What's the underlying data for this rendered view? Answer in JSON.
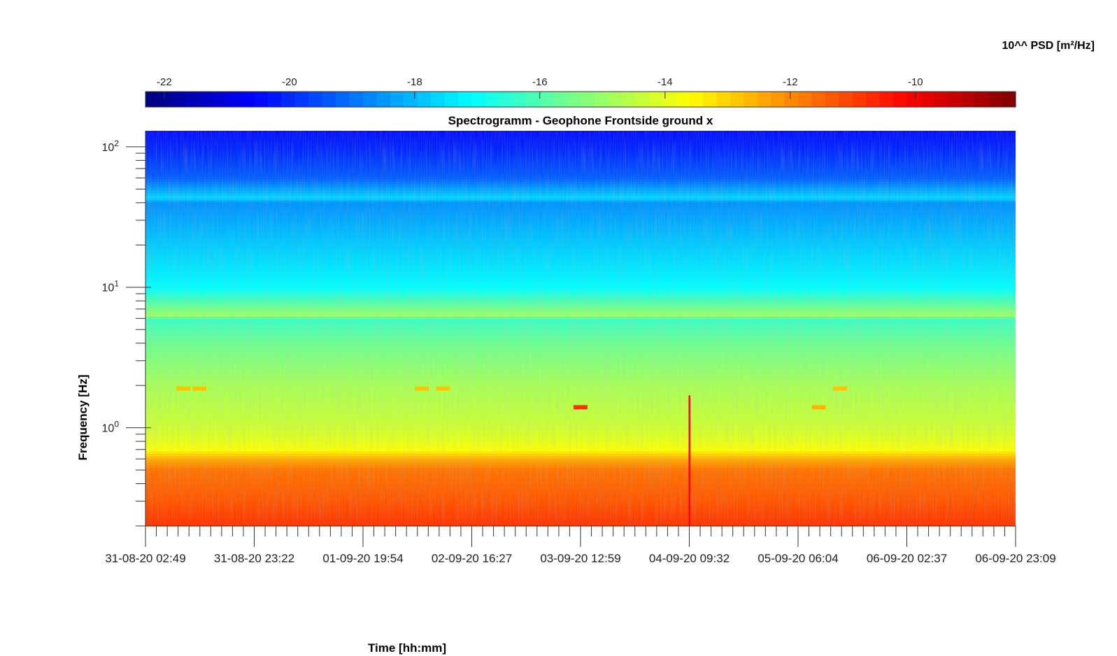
{
  "chart_data": {
    "type": "heatmap",
    "title": "Spectrogramm - Geophone Frontside ground x",
    "xlabel": "Time [hh:mm]",
    "ylabel": "Frequency [Hz]",
    "colorbar_label": "10^^ PSD [m²/Hz]",
    "colormap": "jet",
    "x_tick_labels": [
      "31-08-20 02:49",
      "31-08-20 23:22",
      "01-09-20 19:54",
      "02-09-20 16:27",
      "03-09-20 12:59",
      "04-09-20 09:32",
      "05-09-20 06:04",
      "06-09-20 02:37",
      "06-09-20 23:09"
    ],
    "y_scale": "log",
    "y_tick_labels": [
      {
        "base": "10",
        "exp": "0"
      },
      {
        "base": "10",
        "exp": "1"
      },
      {
        "base": "10",
        "exp": "2"
      }
    ],
    "ylim": [
      0.2,
      130
    ],
    "colorbar_range": [
      -22.3,
      -8.4
    ],
    "colorbar_ticks": [
      "-22",
      "-20",
      "-18",
      "-16",
      "-14",
      "-12",
      "-10"
    ],
    "frequency_profile": [
      {
        "freq_hz": 0.2,
        "log_psd": -10.8
      },
      {
        "freq_hz": 0.3,
        "log_psd": -11.3
      },
      {
        "freq_hz": 0.5,
        "log_psd": -11.7
      },
      {
        "freq_hz": 0.6,
        "log_psd": -12.5
      },
      {
        "freq_hz": 0.7,
        "log_psd": -13.7
      },
      {
        "freq_hz": 1.0,
        "log_psd": -14.3
      },
      {
        "freq_hz": 2.0,
        "log_psd": -14.8
      },
      {
        "freq_hz": 4.0,
        "log_psd": -15.6
      },
      {
        "freq_hz": 6.0,
        "log_psd": -16.3
      },
      {
        "freq_hz": 6.2,
        "log_psd": -14.9
      },
      {
        "freq_hz": 10.0,
        "log_psd": -17.1
      },
      {
        "freq_hz": 20.0,
        "log_psd": -17.8
      },
      {
        "freq_hz": 40.0,
        "log_psd": -18.6
      },
      {
        "freq_hz": 43.0,
        "log_psd": -17.6
      },
      {
        "freq_hz": 60.0,
        "log_psd": -19.3
      },
      {
        "freq_hz": 100.0,
        "log_psd": -20.1
      },
      {
        "freq_hz": 130.0,
        "log_psd": -20.4
      }
    ],
    "notable_features": [
      {
        "time": "~31-08-20 10:00",
        "freq_hz": 1.9,
        "log_psd": -12.8
      },
      {
        "time": "~31-08-20 13:00",
        "freq_hz": 1.9,
        "log_psd": -12.8
      },
      {
        "time": "~02-09-20 07:00",
        "freq_hz": 1.9,
        "log_psd": -12.8
      },
      {
        "time": "~02-09-20 11:00",
        "freq_hz": 1.9,
        "log_psd": -12.8
      },
      {
        "time": "~03-09-20 12:59",
        "freq_hz": 1.4,
        "log_psd": -10.8
      },
      {
        "time": "~04-09-20 09:32",
        "freq_hz": 0.3,
        "log_psd": -10.2
      },
      {
        "time": "~05-09-20 10:00",
        "freq_hz": 1.4,
        "log_psd": -12.6
      },
      {
        "time": "~05-09-20 14:00",
        "freq_hz": 1.9,
        "log_psd": -12.8
      }
    ]
  }
}
